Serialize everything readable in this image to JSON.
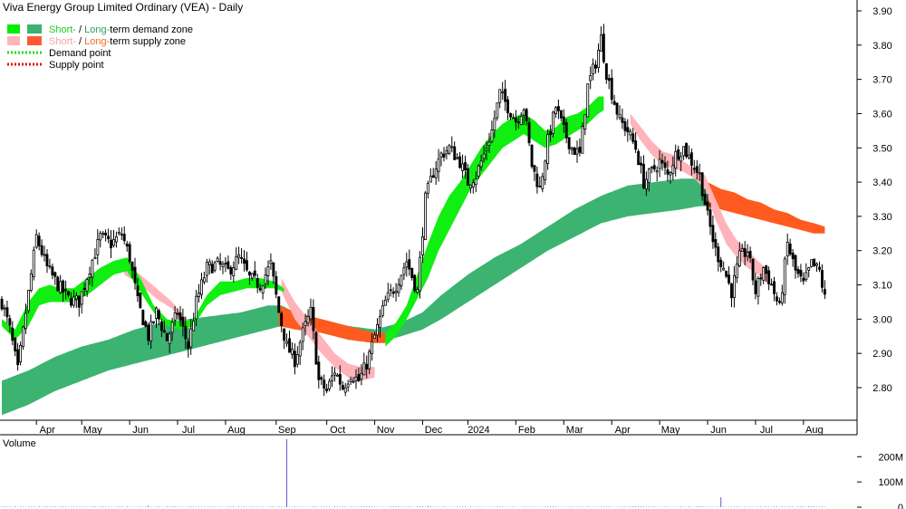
{
  "chart_data": {
    "type": "candlestick",
    "title": "Viva Energy Group Limited Ordinary (VEA) - Daily",
    "legend": [
      {
        "parts": [
          {
            "text": "Short-",
            "color": "#22cc22"
          },
          {
            "text": " / ",
            "color": "#000000"
          },
          {
            "text": "Long-",
            "color": "#2f9e5f"
          },
          {
            "text": "term demand zone",
            "color": "#000000"
          }
        ],
        "swatches": [
          "#00ee00",
          "#3cb371"
        ],
        "style": "box"
      },
      {
        "parts": [
          {
            "text": "Short-",
            "color": "#f4a3a8"
          },
          {
            "text": " / ",
            "color": "#000000"
          },
          {
            "text": "Long-",
            "color": "#f26a2b"
          },
          {
            "text": "term supply zone",
            "color": "#000000"
          }
        ],
        "swatches": [
          "#ffb3ba",
          "#ff5a36"
        ],
        "style": "box"
      },
      {
        "parts": [
          {
            "text": "Demand point",
            "color": "#000000"
          }
        ],
        "swatches": [
          "#22dd22"
        ],
        "style": "dotted"
      },
      {
        "parts": [
          {
            "text": "Supply point",
            "color": "#000000"
          }
        ],
        "swatches": [
          "#dd1111"
        ],
        "style": "dotted"
      }
    ],
    "legend_position": "top-left",
    "y_axis": {
      "position": "right",
      "ylim": [
        2.72,
        3.92
      ],
      "ticks": [
        "3.90",
        "3.80",
        "3.70",
        "3.60",
        "3.50",
        "3.40",
        "3.30",
        "3.20",
        "3.10",
        "3.00",
        "2.90",
        "2.80"
      ]
    },
    "x_labels": [
      {
        "label": "Apr",
        "day": 13
      },
      {
        "label": "May",
        "day": 30
      },
      {
        "label": "Jun",
        "day": 48
      },
      {
        "label": "Jul",
        "day": 66
      },
      {
        "label": "Aug",
        "day": 84
      },
      {
        "label": "Sep",
        "day": 103
      },
      {
        "label": "Oct",
        "day": 122
      },
      {
        "label": "Nov",
        "day": 140
      },
      {
        "label": "Dec",
        "day": 158
      },
      {
        "label": "2024",
        "day": 175
      },
      {
        "label": "Feb",
        "day": 193
      },
      {
        "label": "Mar",
        "day": 211
      },
      {
        "label": "Apr",
        "day": 229
      },
      {
        "label": "May",
        "day": 247
      },
      {
        "label": "Jun",
        "day": 265
      },
      {
        "label": "Jul",
        "day": 283
      },
      {
        "label": "Aug",
        "day": 301
      }
    ],
    "x_range": [
      0,
      315
    ],
    "price_anchors": [
      [
        0,
        3.05
      ],
      [
        3,
        2.97
      ],
      [
        6,
        2.85
      ],
      [
        9,
        3.02
      ],
      [
        13,
        3.24
      ],
      [
        17,
        3.15
      ],
      [
        21,
        3.1
      ],
      [
        25,
        3.06
      ],
      [
        29,
        3.05
      ],
      [
        33,
        3.15
      ],
      [
        37,
        3.24
      ],
      [
        41,
        3.22
      ],
      [
        45,
        3.25
      ],
      [
        48,
        3.18
      ],
      [
        51,
        3.05
      ],
      [
        55,
        2.95
      ],
      [
        58,
        3.02
      ],
      [
        62,
        2.94
      ],
      [
        66,
        3.02
      ],
      [
        70,
        2.92
      ],
      [
        73,
        3.05
      ],
      [
        77,
        3.15
      ],
      [
        81,
        3.16
      ],
      [
        85,
        3.14
      ],
      [
        89,
        3.18
      ],
      [
        93,
        3.12
      ],
      [
        97,
        3.1
      ],
      [
        101,
        3.16
      ],
      [
        104,
        3.02
      ],
      [
        107,
        2.92
      ],
      [
        110,
        2.88
      ],
      [
        113,
        2.96
      ],
      [
        116,
        3.02
      ],
      [
        119,
        2.82
      ],
      [
        122,
        2.79
      ],
      [
        125,
        2.85
      ],
      [
        128,
        2.8
      ],
      [
        131,
        2.84
      ],
      [
        134,
        2.82
      ],
      [
        137,
        2.87
      ],
      [
        140,
        2.95
      ],
      [
        144,
        3.05
      ],
      [
        148,
        3.1
      ],
      [
        152,
        3.17
      ],
      [
        156,
        3.08
      ],
      [
        159,
        3.35
      ],
      [
        162,
        3.43
      ],
      [
        165,
        3.48
      ],
      [
        168,
        3.5
      ],
      [
        172,
        3.46
      ],
      [
        175,
        3.4
      ],
      [
        178,
        3.42
      ],
      [
        181,
        3.48
      ],
      [
        184,
        3.55
      ],
      [
        187,
        3.66
      ],
      [
        190,
        3.62
      ],
      [
        193,
        3.58
      ],
      [
        196,
        3.62
      ],
      [
        199,
        3.45
      ],
      [
        202,
        3.38
      ],
      [
        205,
        3.52
      ],
      [
        208,
        3.62
      ],
      [
        211,
        3.55
      ],
      [
        214,
        3.5
      ],
      [
        217,
        3.48
      ],
      [
        220,
        3.68
      ],
      [
        223,
        3.75
      ],
      [
        225,
        3.82
      ],
      [
        227,
        3.72
      ],
      [
        229,
        3.66
      ],
      [
        232,
        3.58
      ],
      [
        235,
        3.55
      ],
      [
        238,
        3.5
      ],
      [
        241,
        3.4
      ],
      [
        244,
        3.43
      ],
      [
        247,
        3.46
      ],
      [
        250,
        3.42
      ],
      [
        253,
        3.48
      ],
      [
        256,
        3.5
      ],
      [
        259,
        3.46
      ],
      [
        262,
        3.42
      ],
      [
        265,
        3.3
      ],
      [
        268,
        3.2
      ],
      [
        271,
        3.15
      ],
      [
        274,
        3.08
      ],
      [
        277,
        3.18
      ],
      [
        280,
        3.2
      ],
      [
        283,
        3.08
      ],
      [
        286,
        3.15
      ],
      [
        289,
        3.1
      ],
      [
        292,
        3.03
      ],
      [
        295,
        3.22
      ],
      [
        298,
        3.14
      ],
      [
        301,
        3.1
      ],
      [
        304,
        3.16
      ],
      [
        307,
        3.14
      ],
      [
        309,
        3.06
      ]
    ],
    "demand_short_anchors": [
      [
        0,
        3.0,
        2.98
      ],
      [
        5,
        2.97,
        2.94
      ],
      [
        10,
        3.05,
        2.98
      ],
      [
        14,
        3.09,
        3.04
      ],
      [
        18,
        3.1,
        3.05
      ],
      [
        22,
        3.09,
        3.05
      ],
      [
        27,
        3.09,
        3.05
      ],
      [
        32,
        3.12,
        3.07
      ],
      [
        37,
        3.15,
        3.1
      ],
      [
        42,
        3.17,
        3.13
      ],
      [
        47,
        3.18,
        3.14
      ],
      [
        52,
        3.12,
        3.08
      ],
      [
        57,
        3.04,
        3.02
      ],
      [
        62,
        3.0,
        2.98
      ],
      [
        67,
        2.99,
        2.97
      ],
      [
        72,
        3.0,
        2.98
      ],
      [
        77,
        3.07,
        3.04
      ],
      [
        82,
        3.11,
        3.07
      ],
      [
        87,
        3.11,
        3.08
      ],
      [
        92,
        3.12,
        3.09
      ],
      [
        97,
        3.12,
        3.09
      ],
      [
        102,
        3.11,
        3.09
      ],
      [
        106,
        3.09,
        3.08
      ],
      [
        144,
        2.96,
        2.92
      ],
      [
        148,
        2.99,
        2.95
      ],
      [
        152,
        3.04,
        3.0
      ],
      [
        156,
        3.13,
        3.06
      ],
      [
        160,
        3.22,
        3.12
      ],
      [
        164,
        3.3,
        3.2
      ],
      [
        168,
        3.36,
        3.26
      ],
      [
        172,
        3.4,
        3.32
      ],
      [
        176,
        3.45,
        3.38
      ],
      [
        180,
        3.5,
        3.42
      ],
      [
        184,
        3.54,
        3.46
      ],
      [
        188,
        3.57,
        3.5
      ],
      [
        192,
        3.59,
        3.52
      ],
      [
        196,
        3.6,
        3.54
      ],
      [
        200,
        3.58,
        3.52
      ],
      [
        204,
        3.55,
        3.5
      ],
      [
        208,
        3.56,
        3.51
      ],
      [
        212,
        3.59,
        3.53
      ],
      [
        216,
        3.6,
        3.55
      ],
      [
        220,
        3.62,
        3.57
      ],
      [
        224,
        3.65,
        3.6
      ],
      [
        226,
        3.65,
        3.61
      ]
    ],
    "demand_long_anchors": [
      [
        0,
        2.82,
        2.72
      ],
      [
        10,
        2.85,
        2.75
      ],
      [
        20,
        2.89,
        2.79
      ],
      [
        30,
        2.92,
        2.82
      ],
      [
        40,
        2.94,
        2.85
      ],
      [
        50,
        2.97,
        2.87
      ],
      [
        60,
        2.99,
        2.89
      ],
      [
        70,
        3.0,
        2.91
      ],
      [
        80,
        3.01,
        2.93
      ],
      [
        90,
        3.02,
        2.95
      ],
      [
        100,
        3.04,
        2.97
      ],
      [
        105,
        3.04,
        2.98
      ],
      [
        110,
        3.02,
        2.98
      ],
      [
        120,
        3.0,
        2.96
      ],
      [
        130,
        2.98,
        2.94
      ],
      [
        140,
        2.97,
        2.93
      ],
      [
        150,
        2.99,
        2.95
      ],
      [
        158,
        3.02,
        2.97
      ],
      [
        165,
        3.07,
        3.0
      ],
      [
        175,
        3.13,
        3.05
      ],
      [
        185,
        3.18,
        3.1
      ],
      [
        195,
        3.22,
        3.15
      ],
      [
        205,
        3.27,
        3.2
      ],
      [
        215,
        3.32,
        3.24
      ],
      [
        225,
        3.36,
        3.28
      ],
      [
        235,
        3.39,
        3.3
      ],
      [
        245,
        3.4,
        3.31
      ],
      [
        255,
        3.41,
        3.32
      ],
      [
        262,
        3.41,
        3.33
      ],
      [
        265,
        3.4,
        3.33
      ]
    ],
    "supply_short_anchors": [
      [
        46,
        3.16,
        3.13
      ],
      [
        52,
        3.13,
        3.1
      ],
      [
        58,
        3.09,
        3.06
      ],
      [
        64,
        3.05,
        3.03
      ],
      [
        68,
        3.01,
        2.99
      ],
      [
        72,
        2.98,
        2.96
      ],
      [
        105,
        3.12,
        3.08
      ],
      [
        110,
        3.05,
        3.0
      ],
      [
        115,
        3.0,
        2.95
      ],
      [
        120,
        2.95,
        2.9
      ],
      [
        125,
        2.9,
        2.86
      ],
      [
        130,
        2.87,
        2.83
      ],
      [
        135,
        2.86,
        2.82
      ],
      [
        140,
        2.86,
        2.83
      ],
      [
        236,
        3.6,
        3.57
      ],
      [
        240,
        3.56,
        3.52
      ],
      [
        244,
        3.52,
        3.48
      ],
      [
        248,
        3.49,
        3.45
      ],
      [
        252,
        3.48,
        3.44
      ],
      [
        256,
        3.46,
        3.43
      ],
      [
        260,
        3.44,
        3.41
      ],
      [
        264,
        3.42,
        3.38
      ],
      [
        268,
        3.35,
        3.29
      ],
      [
        272,
        3.28,
        3.22
      ],
      [
        276,
        3.23,
        3.18
      ],
      [
        280,
        3.2,
        3.15
      ],
      [
        284,
        3.17,
        3.13
      ],
      [
        288,
        3.14,
        3.1
      ]
    ],
    "supply_long_anchors": [
      [
        104,
        3.04,
        2.98
      ],
      [
        110,
        3.02,
        2.97
      ],
      [
        120,
        3.0,
        2.96
      ],
      [
        130,
        2.98,
        2.94
      ],
      [
        140,
        2.96,
        2.93
      ],
      [
        144,
        2.96,
        2.93
      ],
      [
        265,
        3.4,
        3.33
      ],
      [
        270,
        3.38,
        3.32
      ],
      [
        275,
        3.37,
        3.31
      ],
      [
        280,
        3.35,
        3.3
      ],
      [
        285,
        3.34,
        3.29
      ],
      [
        290,
        3.32,
        3.28
      ],
      [
        295,
        3.31,
        3.27
      ],
      [
        300,
        3.29,
        3.26
      ],
      [
        305,
        3.28,
        3.25
      ],
      [
        309,
        3.27,
        3.25
      ]
    ],
    "volume_panel": {
      "label": "Volume",
      "ylim": [
        0,
        280
      ],
      "ticks": [
        "200M",
        "100M",
        "0"
      ],
      "base_level": 2,
      "spikes": [
        [
          107,
          270
        ],
        [
          270,
          40
        ],
        [
          55,
          6
        ],
        [
          160,
          5
        ]
      ]
    }
  }
}
